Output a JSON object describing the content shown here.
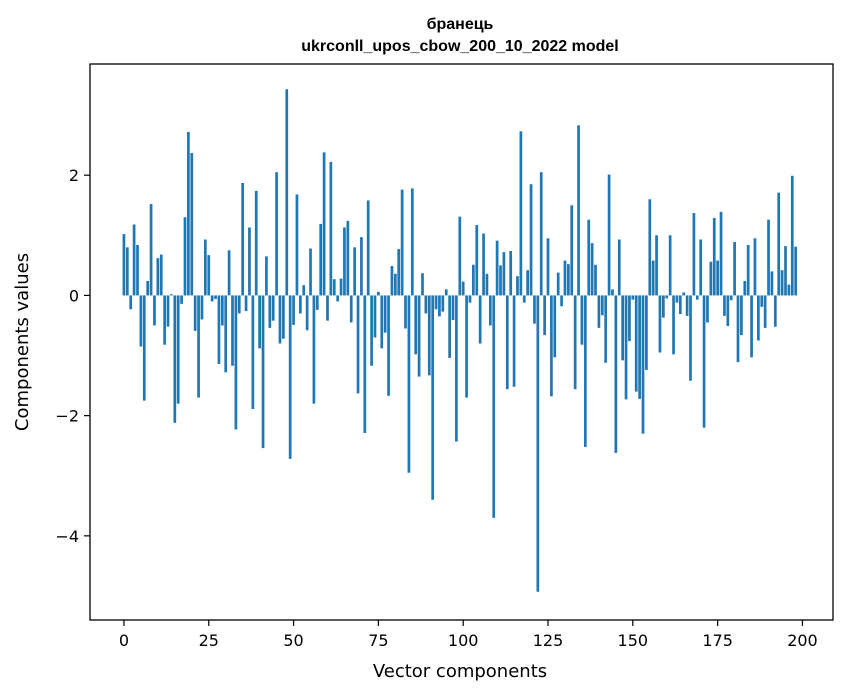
{
  "chart_data": {
    "type": "bar",
    "title": "бранець",
    "subtitle": "ukrconll_upos_cbow_200_10_2022 model",
    "xlabel": "Vector components",
    "ylabel": "Components values",
    "xlim": [
      -10,
      209
    ],
    "ylim": [
      -5.4,
      3.85
    ],
    "xticks": [
      0,
      25,
      50,
      75,
      100,
      125,
      150,
      175,
      200
    ],
    "yticks": [
      -4,
      -2,
      0,
      2
    ],
    "ytick_labels": [
      "−4",
      "−2",
      "0",
      "2"
    ],
    "grid": false,
    "bar_color": "#1f77b4",
    "values": [
      1.02,
      0.8,
      -0.23,
      1.18,
      0.84,
      -0.85,
      -1.75,
      0.24,
      1.52,
      -0.5,
      0.62,
      0.68,
      -0.82,
      -0.52,
      0.02,
      -2.12,
      -1.8,
      -0.14,
      1.3,
      2.72,
      2.37,
      -0.59,
      -1.7,
      -0.4,
      0.93,
      0.67,
      -0.1,
      -0.06,
      -1.14,
      -0.5,
      -1.28,
      0.75,
      -1.17,
      -2.23,
      -0.3,
      1.87,
      -0.26,
      1.13,
      -1.89,
      1.74,
      -0.88,
      -2.54,
      0.65,
      -0.54,
      -0.42,
      2.05,
      -0.8,
      -0.72,
      3.43,
      -2.72,
      -0.49,
      1.68,
      -0.3,
      0.17,
      -0.58,
      0.78,
      -1.8,
      -0.24,
      1.19,
      2.38,
      -0.42,
      2.22,
      0.27,
      -0.1,
      0.28,
      1.13,
      1.24,
      -0.45,
      0.8,
      -1.63,
      0.97,
      -2.29,
      1.58,
      -1.17,
      -0.7,
      0.06,
      -0.88,
      -0.62,
      -1.67,
      0.49,
      0.36,
      0.77,
      1.76,
      -0.55,
      -2.95,
      1.78,
      -0.98,
      -1.35,
      0.37,
      -0.3,
      -1.33,
      -3.4,
      -0.23,
      -0.35,
      -0.27,
      0.1,
      -1.04,
      -0.41,
      -2.43,
      1.31,
      0.23,
      -1.7,
      -0.12,
      0.51,
      1.17,
      -0.8,
      1.03,
      0.36,
      -0.5,
      -3.7,
      0.91,
      0.5,
      0.72,
      -1.56,
      0.74,
      -1.52,
      0.32,
      2.73,
      -0.12,
      0.42,
      1.85,
      -0.47,
      -4.93,
      2.05,
      -0.66,
      0.95,
      -1.68,
      -1.03,
      0.38,
      -0.18,
      0.58,
      0.52,
      1.5,
      -1.56,
      2.83,
      -0.82,
      -2.52,
      1.26,
      0.87,
      0.51,
      -0.54,
      -0.33,
      -1.12,
      2.01,
      0.1,
      -2.62,
      0.93,
      -1.08,
      -1.73,
      -0.76,
      -0.07,
      -1.6,
      -1.72,
      -2.3,
      -1.24,
      1.6,
      0.58,
      1.0,
      -0.95,
      -0.37,
      -0.05,
      1.0,
      -0.98,
      -0.12,
      -0.31,
      0.05,
      -0.34,
      -1.42,
      1.37,
      -0.07,
      0.93,
      -2.2,
      -0.45,
      0.56,
      1.29,
      0.58,
      1.39,
      -0.34,
      -0.51,
      -0.08,
      0.89,
      -1.11,
      -0.66,
      0.24,
      0.84,
      -1.03,
      0.95,
      -0.75,
      -0.19,
      -0.54,
      1.26,
      0.4,
      -0.52,
      1.71,
      0.42,
      0.82,
      0.18,
      1.99,
      0.81
    ]
  }
}
